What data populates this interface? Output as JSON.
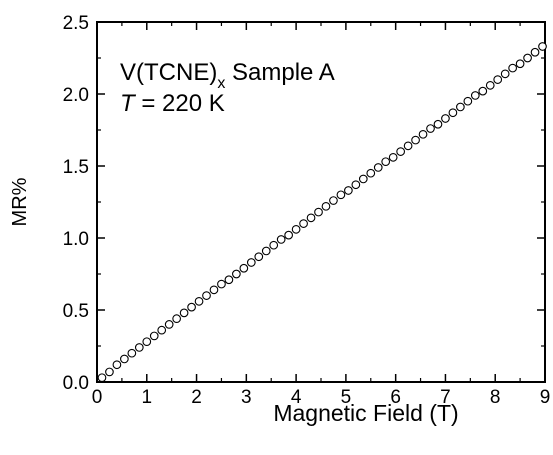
{
  "chart_data": {
    "type": "scatter",
    "xlabel": "Magnetic Field (T)",
    "ylabel": "MR%",
    "xlim": [
      0,
      9
    ],
    "ylim": [
      0.0,
      2.5
    ],
    "x_ticks": [
      "0",
      "1",
      "2",
      "3",
      "4",
      "5",
      "6",
      "7",
      "8",
      "9"
    ],
    "y_ticks": [
      "0.0",
      "0.5",
      "1.0",
      "1.5",
      "2.0",
      "2.5"
    ],
    "grid": false,
    "marker": "open-circle",
    "annotation": {
      "line1_main": "V(TCNE)",
      "line1_sub": "x",
      "line1_rest": " Sample A",
      "line2_var": "T",
      "line2_rest": " = 220 K"
    },
    "series": [
      {
        "x": [
          0.1,
          0.25,
          0.4,
          0.55,
          0.7,
          0.85,
          1.0,
          1.15,
          1.3,
          1.45,
          1.6,
          1.75,
          1.9,
          2.05,
          2.2,
          2.35,
          2.5,
          2.65,
          2.8,
          2.95,
          3.1,
          3.25,
          3.4,
          3.55,
          3.7,
          3.85,
          4.0,
          4.15,
          4.3,
          4.45,
          4.6,
          4.75,
          4.9,
          5.05,
          5.2,
          5.35,
          5.5,
          5.65,
          5.8,
          5.95,
          6.1,
          6.25,
          6.4,
          6.55,
          6.7,
          6.85,
          7.0,
          7.15,
          7.3,
          7.45,
          7.6,
          7.75,
          7.9,
          8.05,
          8.2,
          8.35,
          8.5,
          8.65,
          8.8,
          8.95
        ],
        "y": [
          0.03,
          0.07,
          0.12,
          0.16,
          0.2,
          0.24,
          0.28,
          0.32,
          0.36,
          0.4,
          0.44,
          0.48,
          0.52,
          0.56,
          0.6,
          0.64,
          0.68,
          0.71,
          0.75,
          0.79,
          0.83,
          0.87,
          0.91,
          0.95,
          0.99,
          1.02,
          1.06,
          1.1,
          1.14,
          1.18,
          1.22,
          1.26,
          1.3,
          1.33,
          1.37,
          1.41,
          1.45,
          1.49,
          1.53,
          1.56,
          1.6,
          1.64,
          1.68,
          1.72,
          1.76,
          1.79,
          1.83,
          1.87,
          1.91,
          1.95,
          1.99,
          2.02,
          2.06,
          2.1,
          2.14,
          2.18,
          2.21,
          2.25,
          2.29,
          2.33
        ]
      }
    ]
  }
}
